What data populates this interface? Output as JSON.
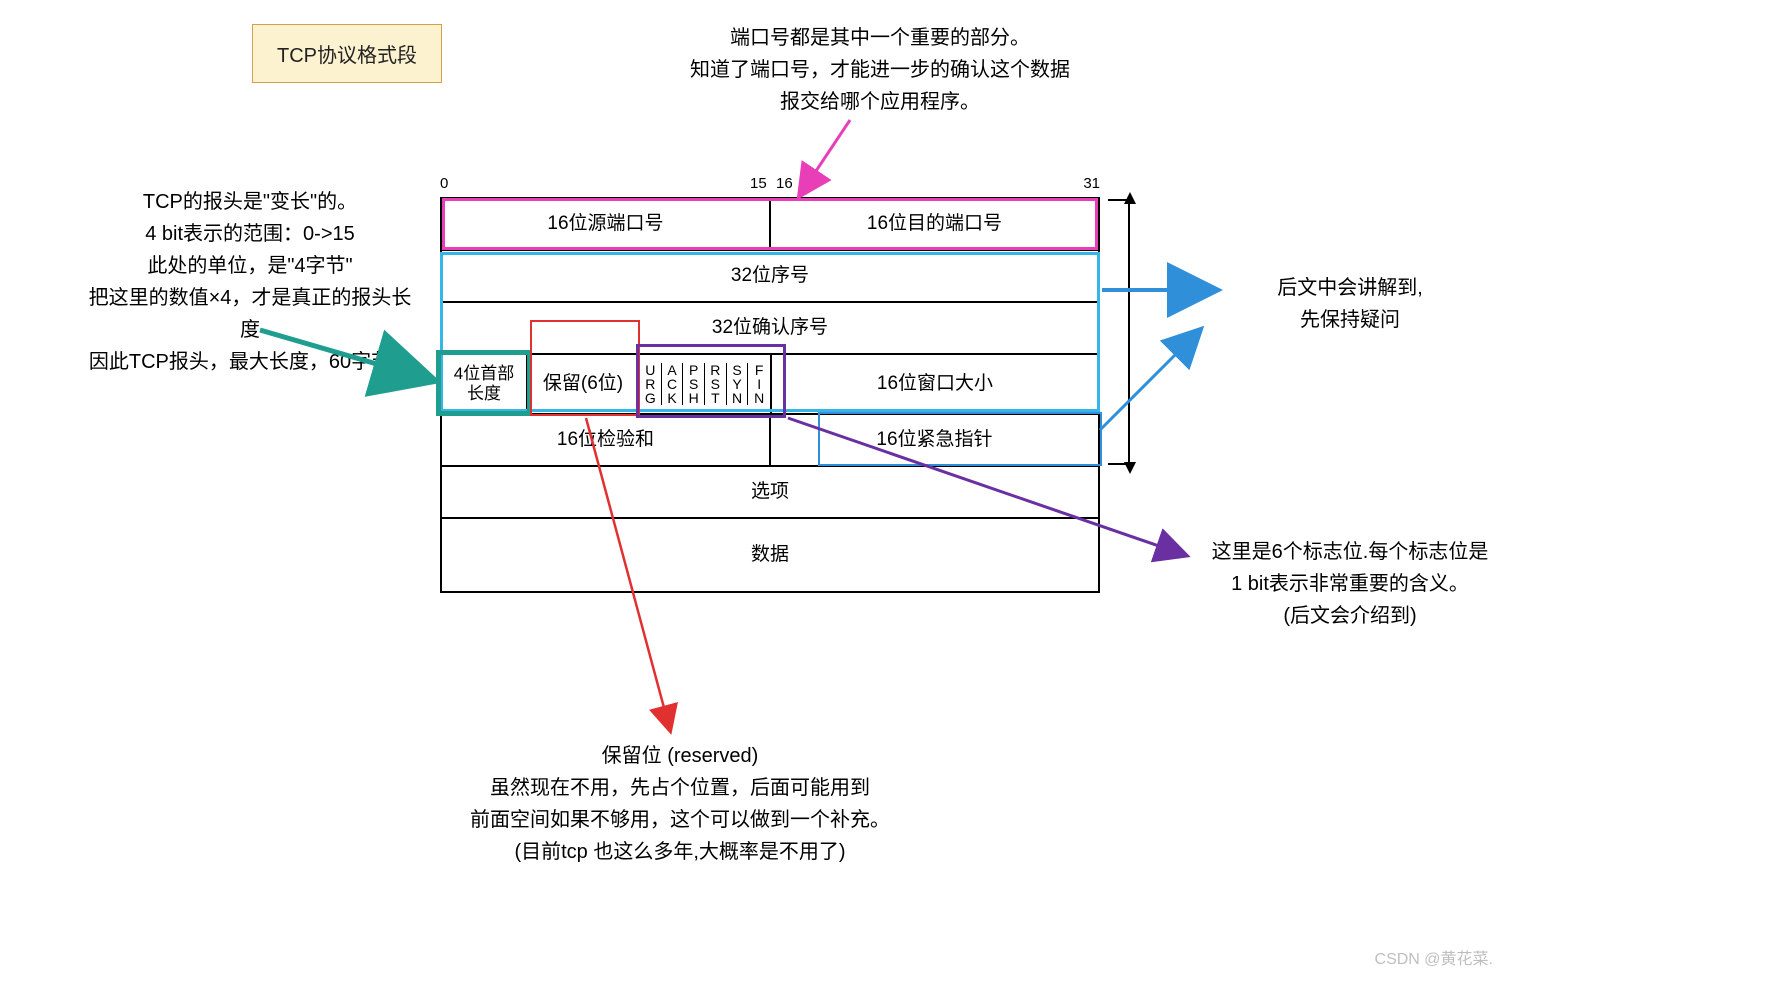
{
  "title": "TCP协议格式段",
  "ruler": {
    "l": "0",
    "m1": "15",
    "m2": "16",
    "r": "31"
  },
  "rows": {
    "r1a": "16位源端口号",
    "r1b": "16位目的端口号",
    "r2": "32位序号",
    "r3": "32位确认序号",
    "r4a": "4位首部\n长度",
    "r4b": "保留(6位)",
    "flags": [
      [
        "U",
        "R",
        "G"
      ],
      [
        "A",
        "C",
        "K"
      ],
      [
        "P",
        "S",
        "H"
      ],
      [
        "R",
        "S",
        "T"
      ],
      [
        "S",
        "Y",
        "N"
      ],
      [
        "F",
        "I",
        "N"
      ]
    ],
    "r4d": "16位窗口大小",
    "r5a": "16位检验和",
    "r5b": "16位紧急指针",
    "r6": "选项",
    "r7": "数据"
  },
  "notes": {
    "top": "端口号都是其中一个重要的部分。\n知道了端口号，才能进一步的确认这个数据\n报交给哪个应用程序。",
    "left": "TCP的报头是\"变长\"的。\n4 bit表示的范围：0->15\n此处的单位，是\"4字节\"\n把这里的数值×4，才是真正的报头长度\n因此TCP报头，最大长度，60字节。",
    "right1": "后文中会讲解到,\n先保持疑问",
    "right2": "这里是6个标志位.每个标志位是\n1 bit表示非常重要的含义。\n(后文会介绍到)",
    "bottom": "保留位 (reserved)\n虽然现在不用，先占个位置，后面可能用到\n前面空间如果不够用，这个可以做到一个补充。\n(目前tcp 也这么多年,大概率是不用了)"
  },
  "colors": {
    "magenta": "#e83fb9",
    "teal": "#1f9e8f",
    "red": "#e03030",
    "purple": "#6a2fa0",
    "blue": "#2f8fd8",
    "cyan": "#35b5e8"
  },
  "watermark": "CSDN @黄花菜."
}
